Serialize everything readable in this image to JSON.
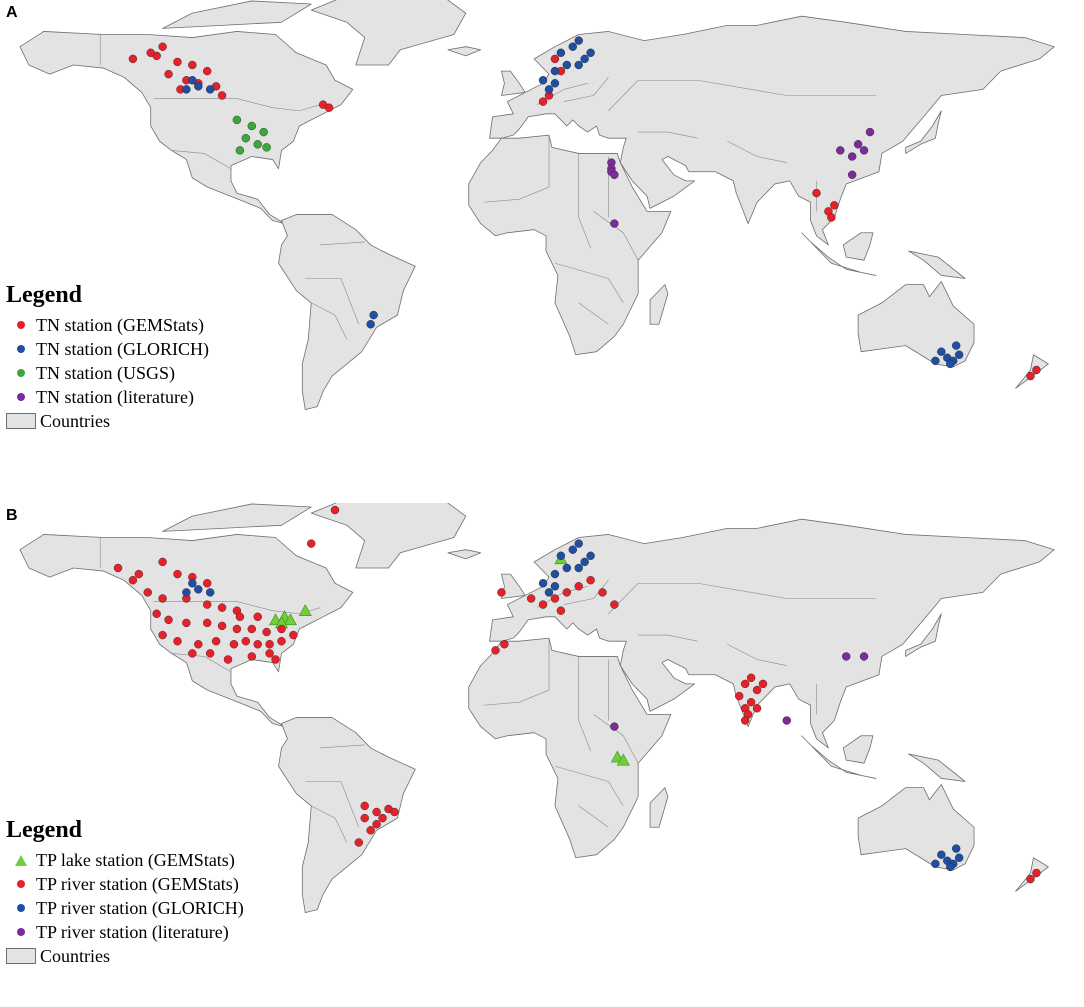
{
  "colors": {
    "land": "#e3e3e3",
    "border": "#6e6e6e",
    "gemstats": "#e8202a",
    "glorich": "#1f4ea3",
    "usgs": "#3aa83a",
    "literature": "#7b2b9b",
    "lake": "#6fcf3a"
  },
  "panel_a": {
    "letter": "A",
    "legend": {
      "title": "Legend",
      "items": [
        {
          "symbol": "dot",
          "color": "#e8202a",
          "label": "TN station (GEMStats)"
        },
        {
          "symbol": "dot",
          "color": "#1f4ea3",
          "label": "TN station (GLORICH)"
        },
        {
          "symbol": "dot",
          "color": "#3aa83a",
          "label": "TN station (USGS)"
        },
        {
          "symbol": "dot",
          "color": "#7b2b9b",
          "label": "TN station (literature)"
        }
      ],
      "countries_label": "Countries"
    },
    "stations": {
      "gemstats": [
        [
          -130,
          62
        ],
        [
          -122,
          63
        ],
        [
          -115,
          61
        ],
        [
          -110,
          60
        ],
        [
          -105,
          58
        ],
        [
          -118,
          57
        ],
        [
          -112,
          55
        ],
        [
          -108,
          54
        ],
        [
          -102,
          53
        ],
        [
          -114,
          52
        ],
        [
          -100,
          50
        ],
        [
          -66,
          47
        ],
        [
          -64,
          46
        ],
        [
          -120,
          66
        ],
        [
          -124,
          64
        ],
        [
          12,
          62
        ],
        [
          14,
          58
        ],
        [
          10,
          50
        ],
        [
          8,
          48
        ],
        [
          100,
          18
        ],
        [
          104,
          12
        ],
        [
          105,
          10
        ],
        [
          106,
          14
        ],
        [
          172,
          -42
        ],
        [
          174,
          -40
        ]
      ],
      "glorich": [
        [
          -112,
          52
        ],
        [
          -108,
          53
        ],
        [
          -104,
          52
        ],
        [
          -110,
          55
        ],
        [
          14,
          64
        ],
        [
          18,
          66
        ],
        [
          20,
          68
        ],
        [
          22,
          62
        ],
        [
          16,
          60
        ],
        [
          12,
          58
        ],
        [
          24,
          64
        ],
        [
          20,
          60
        ],
        [
          8,
          55
        ],
        [
          10,
          52
        ],
        [
          12,
          54
        ],
        [
          -50,
          -25
        ],
        [
          -49,
          -22
        ],
        [
          144,
          -36
        ],
        [
          146,
          -37
        ],
        [
          148,
          -35
        ],
        [
          142,
          -34
        ],
        [
          147,
          -32
        ],
        [
          140,
          -37
        ],
        [
          145,
          -38
        ]
      ],
      "usgs": [
        [
          -90,
          40
        ],
        [
          -92,
          36
        ],
        [
          -86,
          38
        ],
        [
          -88,
          34
        ],
        [
          -94,
          32
        ],
        [
          -95,
          42
        ],
        [
          -85,
          33
        ]
      ],
      "literature": [
        [
          31,
          28
        ],
        [
          31,
          26
        ],
        [
          31,
          25
        ],
        [
          32,
          24
        ],
        [
          32,
          8
        ],
        [
          114,
          34
        ],
        [
          116,
          32
        ],
        [
          112,
          30
        ],
        [
          108,
          32
        ],
        [
          118,
          38
        ],
        [
          112,
          24
        ]
      ]
    }
  },
  "panel_b": {
    "letter": "B",
    "legend": {
      "title": "Legend",
      "items": [
        {
          "symbol": "triangle",
          "color": "#6fcf3a",
          "label": "TP lake station (GEMStats)"
        },
        {
          "symbol": "dot",
          "color": "#e8202a",
          "label": "TP river station (GEMStats)"
        },
        {
          "symbol": "dot",
          "color": "#1f4ea3",
          "label": "TP river station (GLORICH)"
        },
        {
          "symbol": "dot",
          "color": "#7b2b9b",
          "label": "TP river station (literature)"
        }
      ],
      "countries_label": "Countries"
    },
    "stations": {
      "lake": [
        [
          -82,
          43
        ],
        [
          -79,
          44
        ],
        [
          -77,
          43
        ],
        [
          -80,
          42
        ],
        [
          -72,
          46
        ],
        [
          33,
          -2
        ],
        [
          35,
          -3
        ],
        [
          14,
          63
        ]
      ],
      "gemstats": [
        [
          -135,
          60
        ],
        [
          -128,
          58
        ],
        [
          -120,
          62
        ],
        [
          -115,
          58
        ],
        [
          -110,
          57
        ],
        [
          -105,
          55
        ],
        [
          -125,
          52
        ],
        [
          -120,
          50
        ],
        [
          -112,
          50
        ],
        [
          -105,
          48
        ],
        [
          -100,
          47
        ],
        [
          -95,
          46
        ],
        [
          -122,
          45
        ],
        [
          -118,
          43
        ],
        [
          -112,
          42
        ],
        [
          -105,
          42
        ],
        [
          -100,
          41
        ],
        [
          -95,
          40
        ],
        [
          -90,
          40
        ],
        [
          -85,
          39
        ],
        [
          -120,
          38
        ],
        [
          -115,
          36
        ],
        [
          -108,
          35
        ],
        [
          -102,
          36
        ],
        [
          -96,
          35
        ],
        [
          -92,
          36
        ],
        [
          -88,
          35
        ],
        [
          -84,
          35
        ],
        [
          -80,
          36
        ],
        [
          -110,
          32
        ],
        [
          -104,
          32
        ],
        [
          -98,
          30
        ],
        [
          -90,
          31
        ],
        [
          -84,
          32
        ],
        [
          -82,
          30
        ],
        [
          -76,
          38
        ],
        [
          -80,
          40
        ],
        [
          -88,
          44
        ],
        [
          -94,
          44
        ],
        [
          -130,
          56
        ],
        [
          -62,
          79
        ],
        [
          -70,
          68
        ],
        [
          -6,
          52
        ],
        [
          4,
          50
        ],
        [
          8,
          48
        ],
        [
          12,
          50
        ],
        [
          16,
          52
        ],
        [
          20,
          54
        ],
        [
          24,
          56
        ],
        [
          14,
          46
        ],
        [
          28,
          52
        ],
        [
          32,
          48
        ],
        [
          -8,
          33
        ],
        [
          -5,
          35
        ],
        [
          78,
          24
        ],
        [
          76,
          22
        ],
        [
          80,
          20
        ],
        [
          74,
          18
        ],
        [
          78,
          16
        ],
        [
          76,
          14
        ],
        [
          80,
          14
        ],
        [
          77,
          12
        ],
        [
          82,
          22
        ],
        [
          76,
          10
        ],
        [
          -52,
          -22
        ],
        [
          -48,
          -20
        ],
        [
          -46,
          -22
        ],
        [
          -44,
          -19
        ],
        [
          -50,
          -26
        ],
        [
          -54,
          -30
        ],
        [
          -48,
          -24
        ],
        [
          -42,
          -20
        ],
        [
          -52,
          -18
        ],
        [
          172,
          -42
        ],
        [
          174,
          -40
        ]
      ],
      "glorich": [
        [
          -112,
          52
        ],
        [
          -108,
          53
        ],
        [
          -104,
          52
        ],
        [
          -110,
          55
        ],
        [
          14,
          64
        ],
        [
          18,
          66
        ],
        [
          20,
          68
        ],
        [
          22,
          62
        ],
        [
          16,
          60
        ],
        [
          12,
          58
        ],
        [
          24,
          64
        ],
        [
          20,
          60
        ],
        [
          8,
          55
        ],
        [
          10,
          52
        ],
        [
          12,
          54
        ],
        [
          144,
          -36
        ],
        [
          146,
          -37
        ],
        [
          148,
          -35
        ],
        [
          142,
          -34
        ],
        [
          147,
          -32
        ],
        [
          140,
          -37
        ],
        [
          145,
          -38
        ]
      ],
      "literature": [
        [
          110,
          31
        ],
        [
          116,
          31
        ],
        [
          32,
          8
        ],
        [
          90,
          10
        ]
      ]
    }
  }
}
